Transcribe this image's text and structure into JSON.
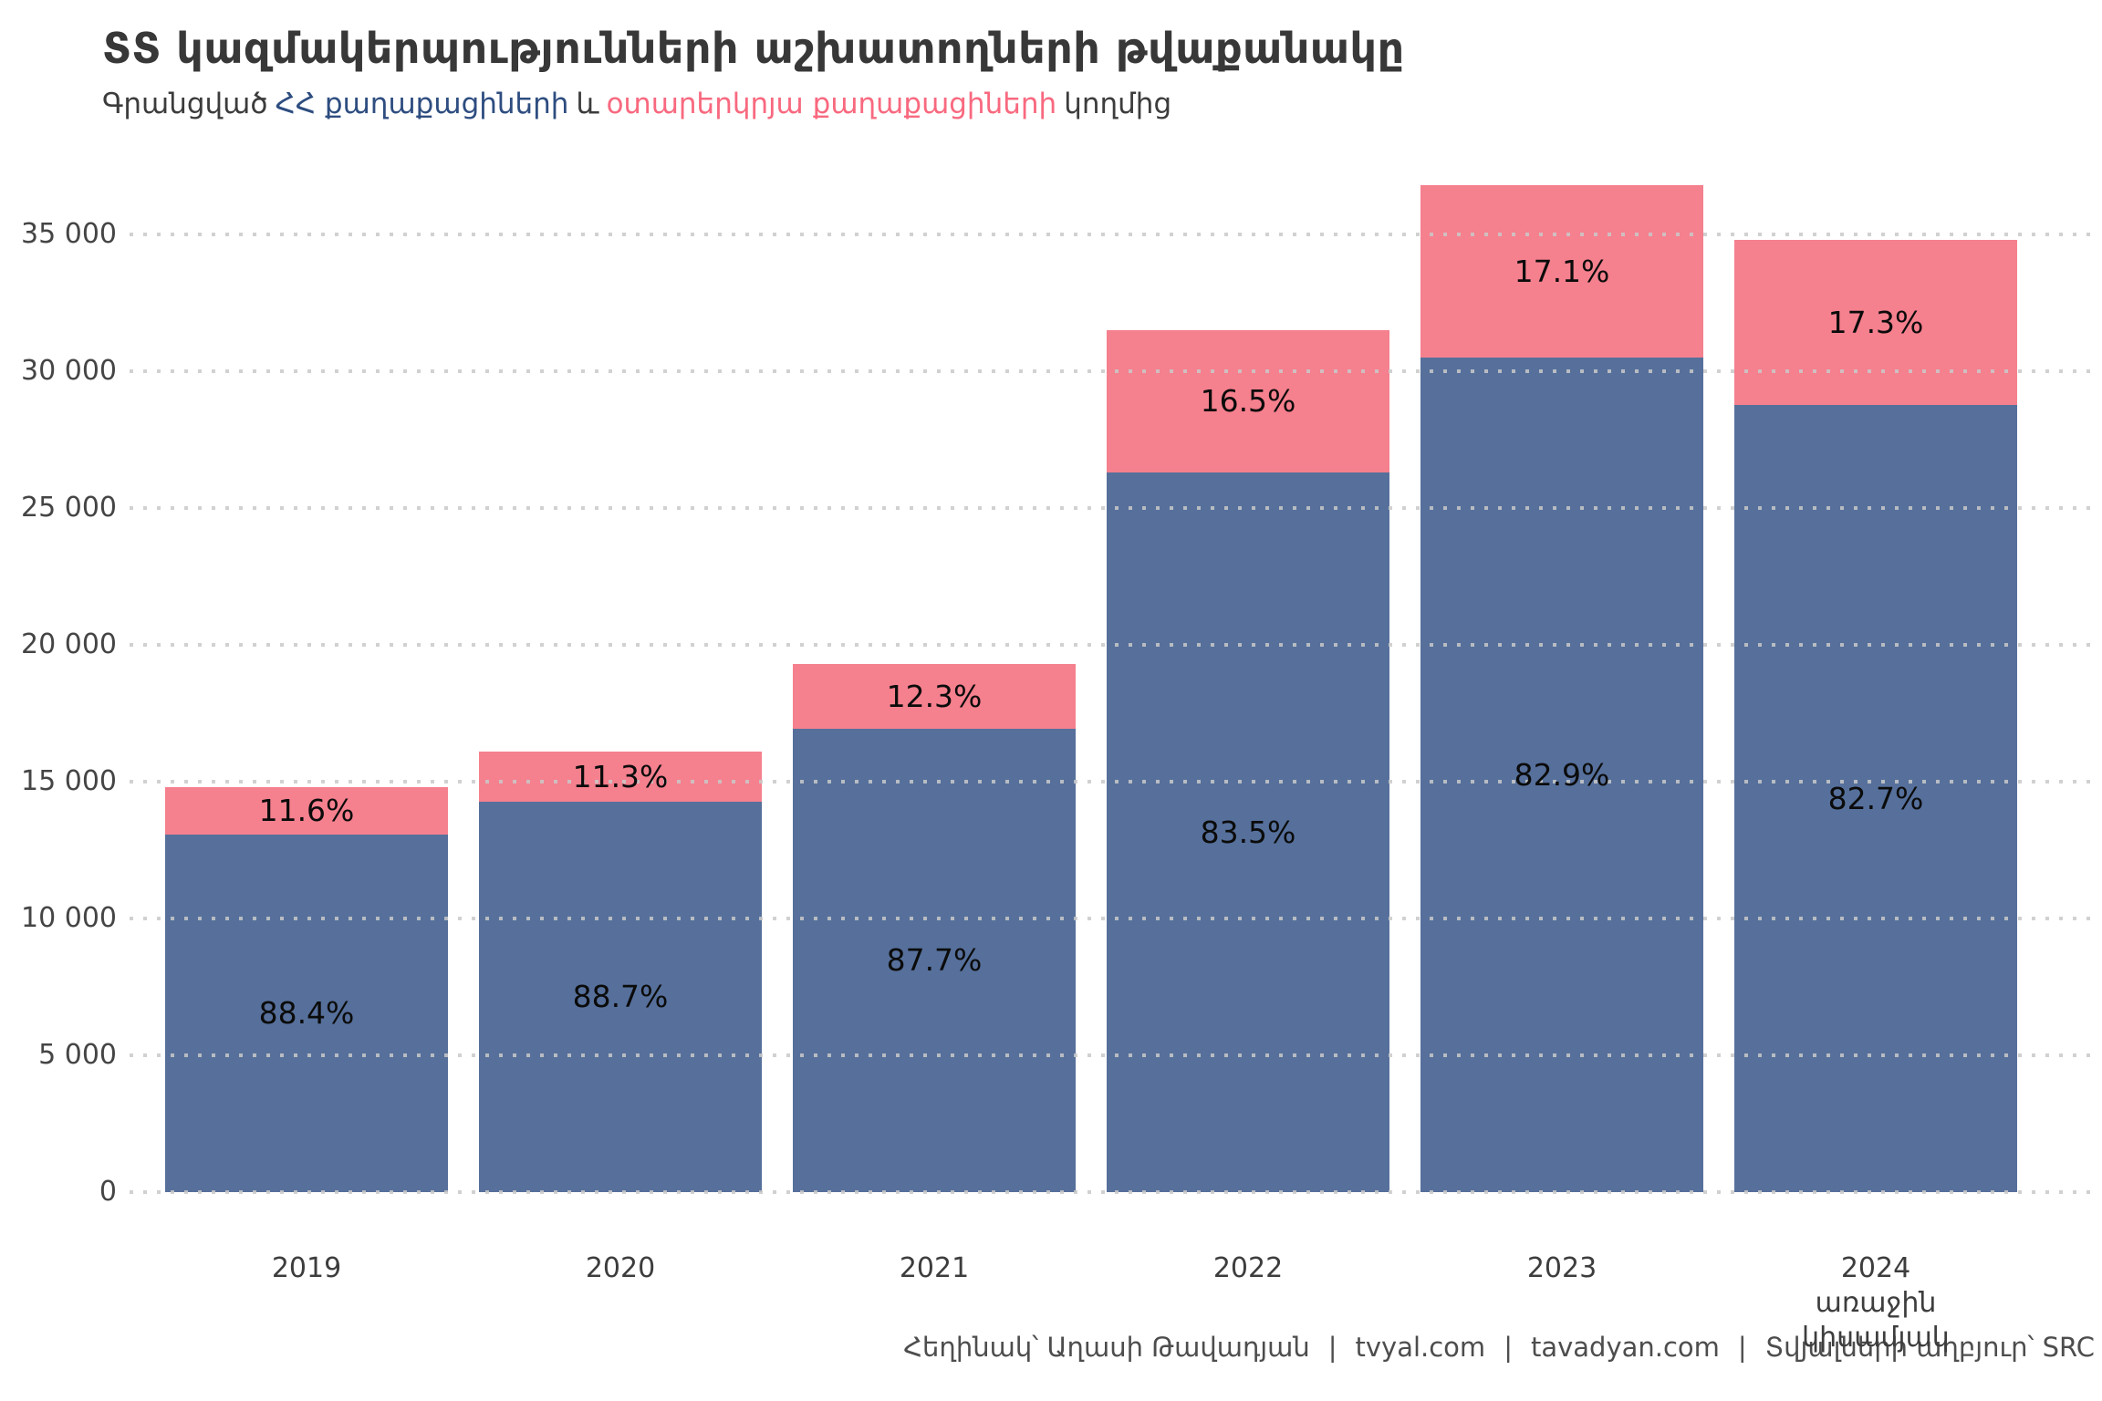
{
  "title": "ՏՏ կազմակերպությունների աշխատողների թվաքանակը",
  "subtitle": {
    "prefix": "Գրանցված",
    "citizens_phrase": "ՀՀ քաղաքացիների",
    "conjunction": "և",
    "foreigners_phrase": "օտարերկրյա քաղաքացիների",
    "suffix": "կողմից"
  },
  "colors": {
    "bar_citizens": "#56709B",
    "bar_foreigners": "#F5808E",
    "subtitle_citizens": "#2E4D80",
    "subtitle_foreigners": "#F8697F",
    "grid": "#c9c9c9"
  },
  "chart_data": {
    "type": "bar",
    "stacked": true,
    "grid": "dotted horizontal",
    "legend": "none (encoded in subtitle colors)",
    "ylim": [
      0,
      36800
    ],
    "yticks": [
      0,
      5000,
      10000,
      15000,
      20000,
      25000,
      30000,
      35000
    ],
    "ytick_labels": [
      "0",
      "5 000",
      "10 000",
      "15 000",
      "20 000",
      "25 000",
      "30 000",
      "35 000"
    ],
    "categories": [
      "2019",
      "2020",
      "2021",
      "2022",
      "2023",
      "2024\nառաջին\nկիսամյակ"
    ],
    "totals": [
      14800,
      16100,
      19300,
      31500,
      36800,
      34800
    ],
    "series": [
      {
        "name": "ՀՀ քաղաքացիների կողմից",
        "color": "#56709B",
        "percents": [
          88.4,
          88.7,
          87.7,
          83.5,
          82.9,
          82.7
        ],
        "labels": [
          "88.4%",
          "88.7%",
          "87.7%",
          "83.5%",
          "82.9%",
          "82.7%"
        ],
        "values": [
          13083,
          14281,
          16926,
          26303,
          30507,
          28780
        ]
      },
      {
        "name": "օտարերկրյա քաղաքացիների կողմից",
        "color": "#F5808E",
        "percents": [
          11.6,
          11.3,
          12.3,
          16.5,
          17.1,
          17.3
        ],
        "labels": [
          "11.6%",
          "11.3%",
          "12.3%",
          "16.5%",
          "17.1%",
          "17.3%"
        ],
        "values": [
          1717,
          1819,
          2374,
          5198,
          6293,
          6020
        ]
      }
    ]
  },
  "footer": {
    "author": "Հեղինակ՝ Աղասի Թավադյան",
    "divider": "|",
    "site1": "tvyal.com",
    "site2": "tavadyan.com",
    "source": "Տվյալների աղբյուր՝ SRC"
  }
}
